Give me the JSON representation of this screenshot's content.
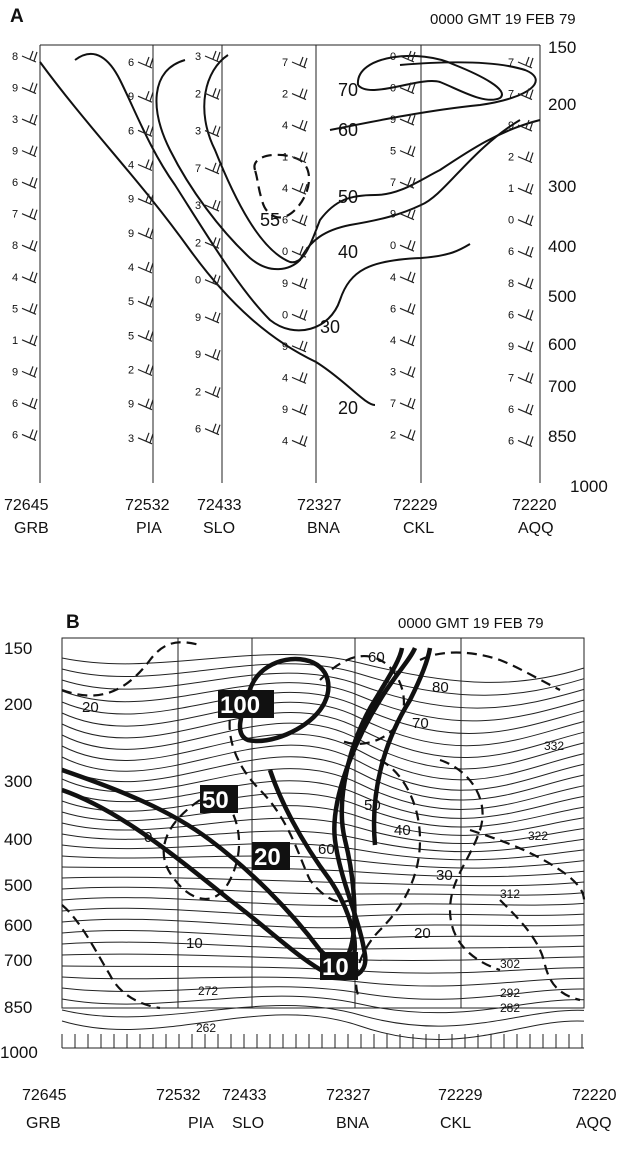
{
  "panel_a": {
    "letter": "A",
    "time": "0000 GMT 19 FEB 79",
    "pressure_ticks": [
      "150",
      "200",
      "300",
      "400",
      "500",
      "600",
      "700",
      "850",
      "1000"
    ],
    "stations": [
      {
        "id": "72645",
        "code": "GRB"
      },
      {
        "id": "72532",
        "code": "PIA"
      },
      {
        "id": "72433",
        "code": "SLO"
      },
      {
        "id": "72327",
        "code": "BNA"
      },
      {
        "id": "72229",
        "code": "CKL"
      },
      {
        "id": "72220",
        "code": "AQQ"
      }
    ],
    "contour_labels": [
      "70",
      "60",
      "50",
      "55",
      "40",
      "30",
      "20"
    ],
    "obs_digits": [
      "8",
      "9",
      "3",
      "9",
      "6",
      "7",
      "8",
      "4",
      "5",
      "1",
      "9",
      "6",
      "6",
      "6",
      "9",
      "6",
      "4",
      "9",
      "9",
      "4",
      "5",
      "5",
      "2",
      "9",
      "3",
      "3",
      "2",
      "3",
      "7",
      "3",
      "2",
      "0",
      "9",
      "9",
      "2",
      "6",
      "7",
      "2",
      "4",
      "1",
      "4",
      "6",
      "0",
      "9",
      "0",
      "9",
      "4",
      "9",
      "4",
      "0",
      "0",
      "9",
      "5",
      "7",
      "9",
      "0",
      "4",
      "6",
      "4",
      "3",
      "7",
      "2",
      "7",
      "7",
      "9",
      "2",
      "1",
      "0",
      "6",
      "8",
      "6",
      "9",
      "7",
      "6",
      "6"
    ]
  },
  "panel_b": {
    "letter": "B",
    "time": "0000 GMT 19 FEB 79",
    "pressure_ticks": [
      "150",
      "200",
      "300",
      "400",
      "500",
      "600",
      "700",
      "850",
      "1000"
    ],
    "stations": [
      {
        "id": "72645",
        "code": "GRB"
      },
      {
        "id": "72532",
        "code": "PIA"
      },
      {
        "id": "72433",
        "code": "SLO"
      },
      {
        "id": "72327",
        "code": "BNA"
      },
      {
        "id": "72229",
        "code": "CKL"
      },
      {
        "id": "72220",
        "code": "AQQ"
      }
    ],
    "thick_labels": [
      "100",
      "50",
      "20",
      "10"
    ],
    "dashed_labels": [
      "20",
      "0",
      "10",
      "60",
      "80",
      "70",
      "50",
      "40",
      "60",
      "30",
      "20"
    ],
    "theta_labels": [
      "332",
      "322",
      "312",
      "302",
      "292",
      "282",
      "272",
      "262"
    ]
  }
}
